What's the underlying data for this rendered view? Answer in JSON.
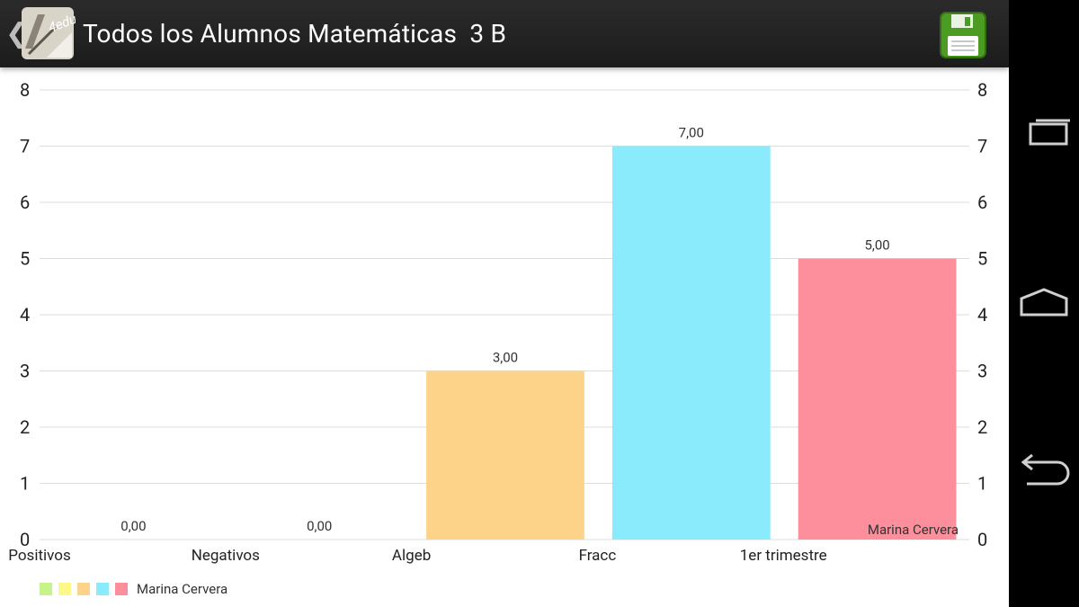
{
  "header": {
    "title": "Todos los Alumnos Matemáticas  3 B",
    "logo_icon": "4edu-logo-icon",
    "logo_text": "4edu",
    "back_icon": "chevron-left-icon",
    "save_icon": "floppy-disk-save-icon"
  },
  "system_nav": {
    "recents_icon": "recent-apps-icon",
    "home_icon": "home-icon",
    "back_icon": "back-arrow-icon"
  },
  "chart_data": {
    "type": "bar",
    "categories": [
      "Positivos",
      "Negativos",
      "Algeb",
      "Fracc",
      "1er trimestre"
    ],
    "values": [
      0,
      0,
      3,
      7,
      5
    ],
    "value_labels": [
      "0,00",
      "0,00",
      "3,00",
      "7,00",
      "5,00"
    ],
    "bar_colors": [
      "#c6f48a",
      "#fdf88a",
      "#fdd38a",
      "#8aebfd",
      "#fd8e9b"
    ],
    "ylim": [
      0,
      8
    ],
    "y_ticks": [
      0,
      1,
      2,
      3,
      4,
      5,
      6,
      7,
      8
    ],
    "grid": true,
    "series_label": "Marina Cervera",
    "legend": {
      "placement": "bottom-left",
      "label": "Marina Cervera",
      "swatches": [
        "#c6f48a",
        "#fdf88a",
        "#fdd38a",
        "#8aebfd",
        "#fd8e9b"
      ]
    }
  }
}
